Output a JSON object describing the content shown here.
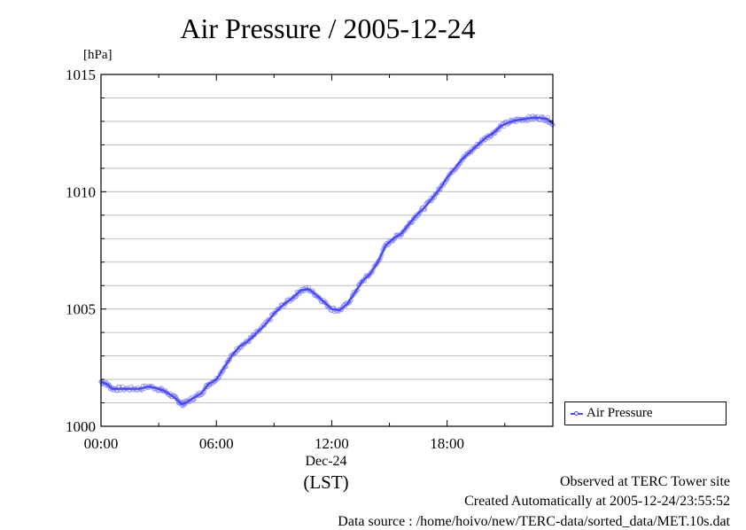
{
  "title": "Air Pressure / 2005-12-24",
  "y_unit": "[hPa]",
  "x_date_label": "Dec-24",
  "x_timezone_label": "(LST)",
  "legend": {
    "label": "Air Pressure"
  },
  "footer": {
    "observed": "Observed at TERC Tower site",
    "created": "Created Automatically at 2005-12-24/23:55:52",
    "source": "Data source : /home/hoivo/new/TERC-data/sorted_data/MET.10s.dat"
  },
  "colors": {
    "series": "#4a4af0",
    "grid": "#b0b0b0",
    "axis": "#000000"
  },
  "chart_data": {
    "type": "line",
    "title": "Air Pressure / 2005-12-24",
    "xlabel": "Dec-24 (LST)",
    "ylabel": "[hPa]",
    "xlim": [
      0,
      23.5
    ],
    "ylim": [
      1000,
      1015
    ],
    "x_ticks": [
      {
        "value": 0,
        "label": "00:00"
      },
      {
        "value": 6,
        "label": "06:00"
      },
      {
        "value": 12,
        "label": "12:00"
      },
      {
        "value": 18,
        "label": "18:00"
      }
    ],
    "y_ticks": [
      {
        "value": 1000,
        "label": "1000"
      },
      {
        "value": 1005,
        "label": "1005"
      },
      {
        "value": 1010,
        "label": "1010"
      },
      {
        "value": 1015,
        "label": "1015"
      }
    ],
    "grid": true,
    "legend_position": "right-bottom",
    "series": [
      {
        "name": "Air Pressure",
        "x": [
          0,
          0.3,
          0.6,
          1,
          1.5,
          2,
          2.5,
          3,
          3.3,
          3.7,
          4,
          4.2,
          4.4,
          4.8,
          5.2,
          5.6,
          6,
          6.4,
          6.8,
          7.2,
          7.6,
          8,
          8.5,
          9,
          9.5,
          10,
          10.4,
          10.8,
          11.2,
          11.6,
          12,
          12.4,
          12.8,
          13.2,
          13.6,
          14,
          14.4,
          14.8,
          15.2,
          15.6,
          16,
          16.4,
          16.8,
          17.2,
          17.6,
          18,
          18.4,
          18.8,
          19.2,
          19.6,
          20,
          20.4,
          20.8,
          21.2,
          21.6,
          22,
          22.4,
          22.8,
          23.2,
          23.5
        ],
        "y": [
          1001.9,
          1001.8,
          1001.6,
          1001.6,
          1001.6,
          1001.6,
          1001.7,
          1001.6,
          1001.5,
          1001.3,
          1001.1,
          1000.95,
          1001.0,
          1001.2,
          1001.4,
          1001.8,
          1002.0,
          1002.5,
          1003.0,
          1003.4,
          1003.6,
          1003.9,
          1004.3,
          1004.8,
          1005.2,
          1005.5,
          1005.8,
          1005.85,
          1005.6,
          1005.3,
          1005.0,
          1004.95,
          1005.2,
          1005.7,
          1006.2,
          1006.5,
          1007.0,
          1007.7,
          1008.0,
          1008.2,
          1008.6,
          1009.0,
          1009.3,
          1009.7,
          1010.1,
          1010.6,
          1011.0,
          1011.4,
          1011.7,
          1012.0,
          1012.3,
          1012.5,
          1012.8,
          1012.95,
          1013.05,
          1013.1,
          1013.15,
          1013.15,
          1013.1,
          1012.9
        ]
      }
    ]
  }
}
